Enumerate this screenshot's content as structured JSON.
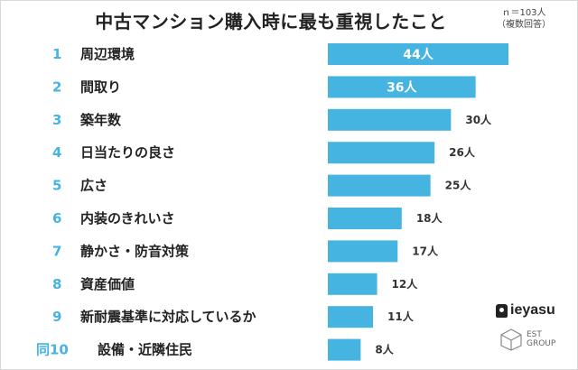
{
  "title": "中古マンション購入時に最も重視したこと",
  "note": {
    "line1": "ｎ＝103人",
    "line2": "（複数回答）"
  },
  "chart_data": {
    "type": "bar",
    "orientation": "horizontal",
    "unit": "人",
    "xlim": [
      0,
      44
    ],
    "grid": false,
    "categories": [
      {
        "rank": "1",
        "label": "周辺環境",
        "value": 44
      },
      {
        "rank": "2",
        "label": "間取り",
        "value": 36
      },
      {
        "rank": "3",
        "label": "築年数",
        "value": 30
      },
      {
        "rank": "4",
        "label": "日当たりの良さ",
        "value": 26
      },
      {
        "rank": "5",
        "label": "広さ",
        "value": 25
      },
      {
        "rank": "6",
        "label": "内装のきれいさ",
        "value": 18
      },
      {
        "rank": "7",
        "label": "静かさ・防音対策",
        "value": 17
      },
      {
        "rank": "8",
        "label": "資産価値",
        "value": 12
      },
      {
        "rank": "9",
        "label": "新耐震基準に対応しているか",
        "value": 11
      },
      {
        "rank": "同10",
        "label": "設備・近隣住民",
        "value": 8
      }
    ],
    "bar_color": "#45b4e0"
  },
  "brand": {
    "name": "ieyasu",
    "group_line1": "EST",
    "group_line2": "GROUP"
  }
}
